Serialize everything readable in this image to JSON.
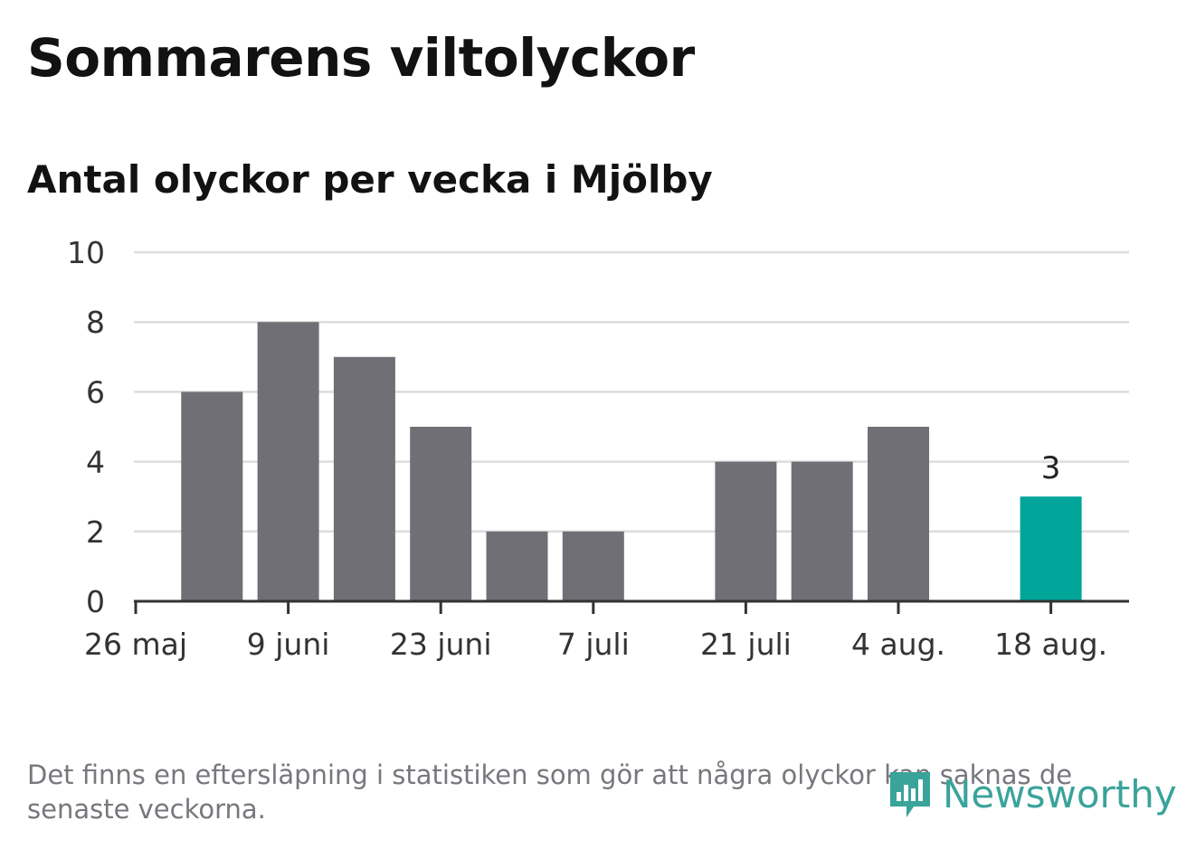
{
  "title": "Sommarens viltolyckor",
  "subtitle": "Antal olyckor per vecka i Mjölby",
  "footnote": "Det finns en eftersläpning i statistiken som gör att några olyckor kan saknas de senaste veckorna.",
  "logo_text": "Newsworthy",
  "colors": {
    "bar": "#706f75",
    "highlight": "#00a59a",
    "grid": "#dddddd",
    "axis": "#333333",
    "logo": "#3aa39a"
  },
  "chart_data": {
    "type": "bar",
    "title": "Sommarens viltolyckor",
    "subtitle": "Antal olyckor per vecka i Mjölby",
    "xlabel": "",
    "ylabel": "",
    "ylim": [
      0,
      10
    ],
    "yticks": [
      0,
      2,
      4,
      6,
      8,
      10
    ],
    "xtick_labels": [
      "26 maj",
      "9 juni",
      "23 juni",
      "7 juli",
      "21 juli",
      "4 aug.",
      "18 aug."
    ],
    "categories": [
      "2019-05-26",
      "2019-06-02",
      "2019-06-09",
      "2019-06-16",
      "2019-06-23",
      "2019-06-30",
      "2019-07-07",
      "2019-07-14",
      "2019-07-21",
      "2019-07-28",
      "2019-08-04",
      "2019-08-11",
      "2019-08-18"
    ],
    "values": [
      null,
      6,
      8,
      7,
      5,
      2,
      2,
      0,
      4,
      4,
      5,
      0,
      3
    ],
    "highlight_index": 12,
    "data_labels": [
      {
        "index": 12,
        "text": "3"
      }
    ],
    "grid": true,
    "legend": "none"
  }
}
